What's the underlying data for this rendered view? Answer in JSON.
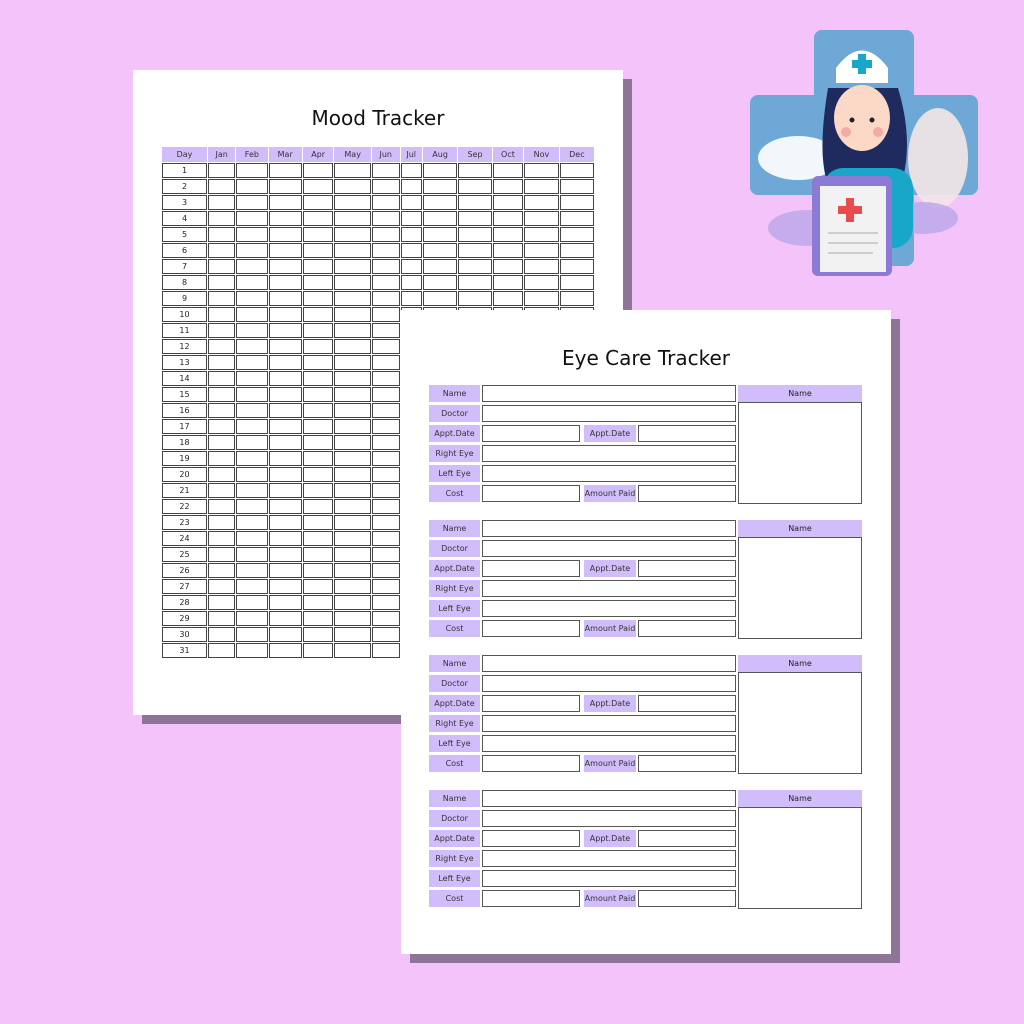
{
  "mood_tracker": {
    "title": "Mood Tracker",
    "columns": [
      "Day",
      "Jan",
      "Feb",
      "Mar",
      "Apr",
      "May",
      "Jun",
      "Jul",
      "Aug",
      "Sep",
      "Oct",
      "Nov",
      "Dec"
    ],
    "days": [
      "1",
      "2",
      "3",
      "4",
      "5",
      "6",
      "7",
      "8",
      "9",
      "10",
      "11",
      "12",
      "13",
      "14",
      "15",
      "16",
      "17",
      "18",
      "19",
      "20",
      "21",
      "22",
      "23",
      "24",
      "25",
      "26",
      "27",
      "28",
      "29",
      "30",
      "31"
    ]
  },
  "eye_care_tracker": {
    "title": "Eye Care Tracker",
    "labels": {
      "name": "Name",
      "doctor": "Doctor",
      "appt_date": "Appt.Date",
      "appt_date_2": "Appt.Date",
      "right_eye": "Right Eye",
      "left_eye": "Left Eye",
      "cost": "Cost",
      "amount_paid": "Amount Paid",
      "side_name": "Name"
    },
    "block_count": 4
  },
  "colors": {
    "background": "#f3c3f9",
    "header": "#d2bdfb",
    "shadow": "#8c7596"
  },
  "illustration": "nurse-with-clipboard"
}
